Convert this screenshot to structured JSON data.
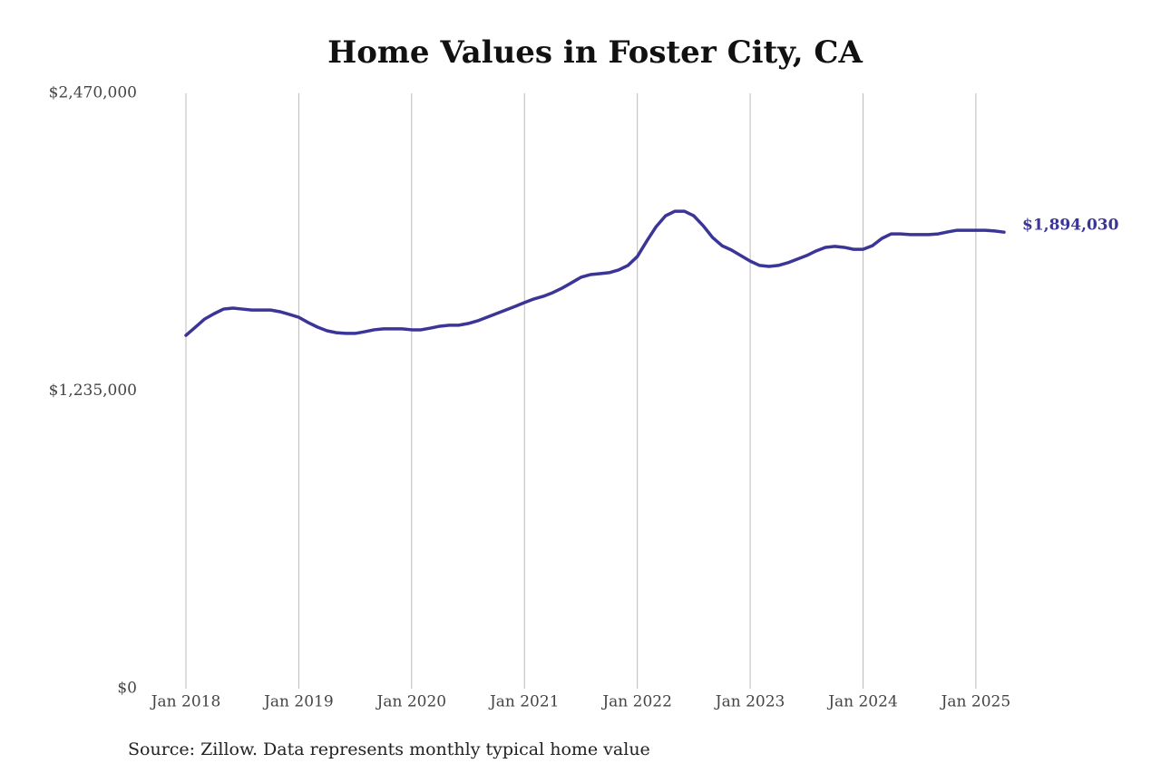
{
  "chart_data": {
    "type": "line",
    "title": "Home Values in Foster City, CA",
    "source": "Source: Zillow. Data represents monthly typical home value",
    "x": [
      "2018-01",
      "2018-02",
      "2018-03",
      "2018-04",
      "2018-05",
      "2018-06",
      "2018-07",
      "2018-08",
      "2018-09",
      "2018-10",
      "2018-11",
      "2018-12",
      "2019-01",
      "2019-02",
      "2019-03",
      "2019-04",
      "2019-05",
      "2019-06",
      "2019-07",
      "2019-08",
      "2019-09",
      "2019-10",
      "2019-11",
      "2019-12",
      "2020-01",
      "2020-02",
      "2020-03",
      "2020-04",
      "2020-05",
      "2020-06",
      "2020-07",
      "2020-08",
      "2020-09",
      "2020-10",
      "2020-11",
      "2020-12",
      "2021-01",
      "2021-02",
      "2021-03",
      "2021-04",
      "2021-05",
      "2021-06",
      "2021-07",
      "2021-08",
      "2021-09",
      "2021-10",
      "2021-11",
      "2021-12",
      "2022-01",
      "2022-02",
      "2022-03",
      "2022-04",
      "2022-05",
      "2022-06",
      "2022-07",
      "2022-08",
      "2022-09",
      "2022-10",
      "2022-11",
      "2022-12",
      "2023-01",
      "2023-02",
      "2023-03",
      "2023-04",
      "2023-05",
      "2023-06",
      "2023-07",
      "2023-08",
      "2023-09",
      "2023-10",
      "2023-11",
      "2023-12",
      "2024-01",
      "2024-02",
      "2024-03",
      "2024-04",
      "2024-05",
      "2024-06",
      "2024-07",
      "2024-08",
      "2024-09",
      "2024-10",
      "2024-11",
      "2024-12",
      "2025-01",
      "2025-02",
      "2025-03",
      "2025-04"
    ],
    "series": [
      {
        "color": "#3a3596",
        "last_value_label": "$1,894,030",
        "values": [
          1466000,
          1500000,
          1534000,
          1556000,
          1575000,
          1579000,
          1575000,
          1571000,
          1571000,
          1571000,
          1564000,
          1553000,
          1541000,
          1519000,
          1500000,
          1485000,
          1477000,
          1474000,
          1474000,
          1481000,
          1489000,
          1493000,
          1493000,
          1493000,
          1489000,
          1489000,
          1496000,
          1504000,
          1508000,
          1508000,
          1515000,
          1526000,
          1541000,
          1556000,
          1571000,
          1586000,
          1602000,
          1617000,
          1628000,
          1643000,
          1662000,
          1684000,
          1707000,
          1718000,
          1722000,
          1726000,
          1737000,
          1756000,
          1793000,
          1857000,
          1917000,
          1962000,
          1981000,
          1981000,
          1962000,
          1921000,
          1872000,
          1838000,
          1820000,
          1797000,
          1774000,
          1756000,
          1752000,
          1756000,
          1767000,
          1782000,
          1797000,
          1816000,
          1831000,
          1835000,
          1831000,
          1823000,
          1823000,
          1838000,
          1868000,
          1887000,
          1887000,
          1884000,
          1884000,
          1884000,
          1887000,
          1895000,
          1902000,
          1902000,
          1902000,
          1902000,
          1899000,
          1894030
        ]
      }
    ],
    "xlim": [
      "2018-01",
      "2025-04"
    ],
    "xticks": [
      {
        "value": "2018-01",
        "label": "Jan 2018"
      },
      {
        "value": "2019-01",
        "label": "Jan 2019"
      },
      {
        "value": "2020-01",
        "label": "Jan 2020"
      },
      {
        "value": "2021-01",
        "label": "Jan 2021"
      },
      {
        "value": "2022-01",
        "label": "Jan 2022"
      },
      {
        "value": "2023-01",
        "label": "Jan 2023"
      },
      {
        "value": "2024-01",
        "label": "Jan 2024"
      },
      {
        "value": "2025-01",
        "label": "Jan 2025"
      }
    ],
    "ylim": [
      0,
      2470000
    ],
    "yticks": [
      {
        "value": 0,
        "label": "$0"
      },
      {
        "value": 1235000,
        "label": "$1,235,000"
      },
      {
        "value": 2470000,
        "label": "$2,470,000"
      }
    ],
    "x_grid": true
  }
}
